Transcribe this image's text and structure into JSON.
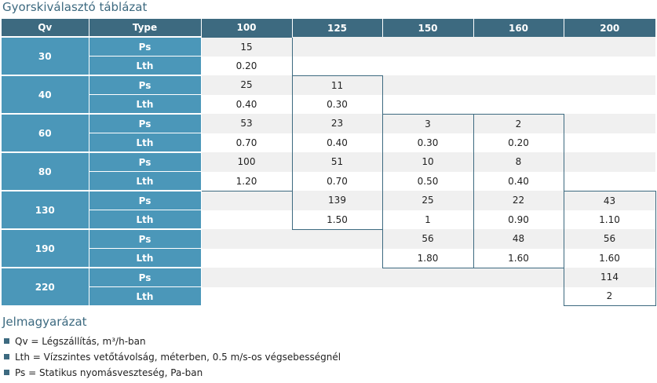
{
  "title": "Gyorskiválasztó táblázat",
  "table": {
    "qv_header": "Qv",
    "type_header": "Type",
    "columns": [
      "100",
      "125",
      "150",
      "160",
      "200"
    ],
    "rows": [
      {
        "qv": "30",
        "ps": [
          "15",
          "",
          "",
          "",
          ""
        ],
        "lth": [
          "0.20",
          "",
          "",
          "",
          ""
        ]
      },
      {
        "qv": "40",
        "ps": [
          "25",
          "11",
          "",
          "",
          ""
        ],
        "lth": [
          "0.40",
          "0.30",
          "",
          "",
          ""
        ]
      },
      {
        "qv": "60",
        "ps": [
          "53",
          "23",
          "3",
          "2",
          ""
        ],
        "lth": [
          "0.70",
          "0.40",
          "0.30",
          "0.20",
          ""
        ]
      },
      {
        "qv": "80",
        "ps": [
          "100",
          "51",
          "10",
          "8",
          ""
        ],
        "lth": [
          "1.20",
          "0.70",
          "0.50",
          "0.40",
          ""
        ]
      },
      {
        "qv": "130",
        "ps": [
          "",
          "139",
          "25",
          "22",
          "43"
        ],
        "lth": [
          "",
          "1.50",
          "1",
          "0.90",
          "1.10"
        ]
      },
      {
        "qv": "190",
        "ps": [
          "",
          "",
          "56",
          "48",
          "56"
        ],
        "lth": [
          "",
          "",
          "1.80",
          "1.60",
          "1.60"
        ]
      },
      {
        "qv": "220",
        "ps": [
          "",
          "",
          "",
          "",
          "114"
        ],
        "lth": [
          "",
          "",
          "",
          "",
          "2"
        ]
      }
    ],
    "ps_label": "Ps",
    "lth_label": "Lth"
  },
  "legend": {
    "title": "Jelmagyarázat",
    "items": [
      "Qv = Légszállítás, m³/h-ban",
      "Lth = Vízszintes vetőtávolság, méterben, 0.5 m/s-os végsebességnél",
      "Ps = Statikus nyomásveszteség, Pa-ban"
    ]
  },
  "colors": {
    "header_bg": "#3d6a80",
    "label_bg": "#4b97b9",
    "accent_text": "#3d6a80",
    "ps_row_bg": "#f0f0f0"
  }
}
